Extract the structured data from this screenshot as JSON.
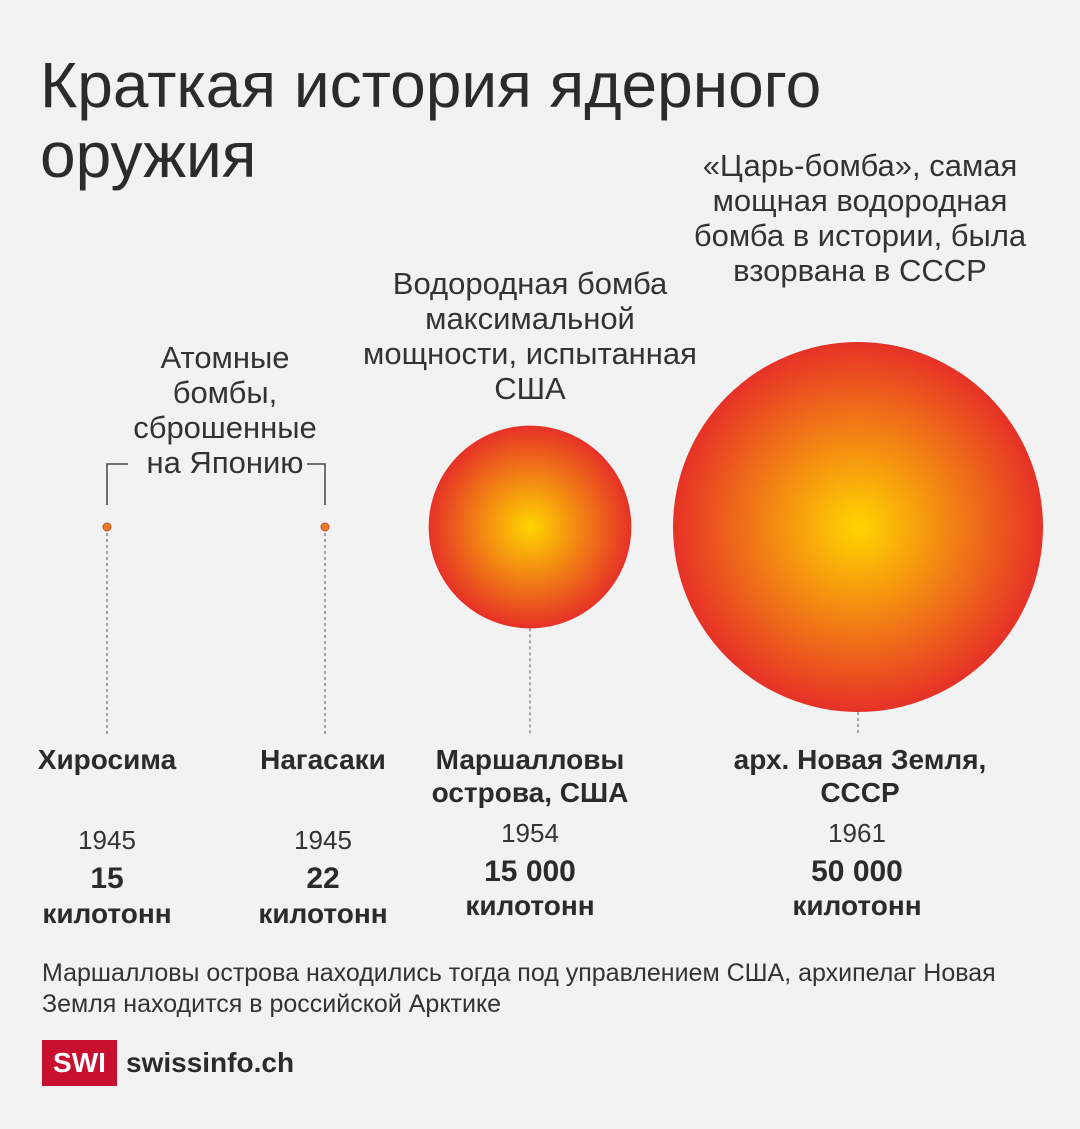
{
  "title": "Краткая история ядерного оружия",
  "colors": {
    "fireball_center": "#ffd500",
    "fireball_edge": "#e63127",
    "marker": "#ee7d22",
    "brand": "#c8102e",
    "background": "#f2f2f2"
  },
  "labels": {
    "atomic": "Атомные бомбы, сброшенные на Японию",
    "hydrogen_usa": "Водородная бомба максимальной мощности, испытанная США",
    "tsar": "«Царь-бомба», самая мощная водородная бомба в истории, была взорвана в СССР"
  },
  "chart_data": {
    "type": "bubble",
    "unit": "килотонн",
    "points": [
      {
        "place": "Хиросима",
        "year": "1945",
        "value": 15,
        "value_label": "15"
      },
      {
        "place": "Нагасаки",
        "year": "1945",
        "value": 22,
        "value_label": "22"
      },
      {
        "place": "Маршалловы острова, США",
        "year": "1954",
        "value": 15000,
        "value_label": "15 000"
      },
      {
        "place": "арх. Новая Земля, СССР",
        "year": "1961",
        "value": 50000,
        "value_label": "50 000"
      }
    ]
  },
  "note": "Маршалловы острова находились тогда под  управлением США, архипелаг Новая Земля находится в российской Арктике",
  "logo": {
    "badge": "SWI",
    "text": "swissinfo.ch"
  }
}
